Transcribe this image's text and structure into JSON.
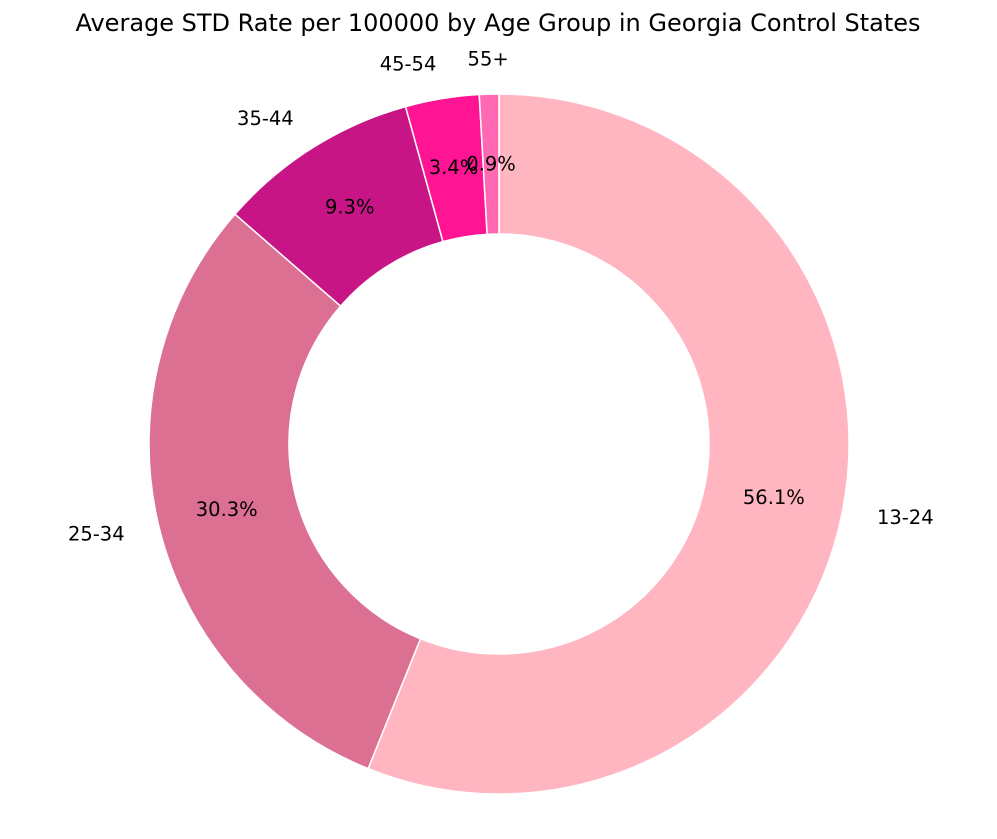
{
  "chart_data": {
    "type": "pie",
    "title": "Average STD Rate per 100000 by Age Group in Georgia Control States",
    "donut": true,
    "start": "top",
    "direction": "clockwise",
    "slices": [
      {
        "label": "13-24",
        "value": 56.1,
        "pct_label": "56.1%",
        "color": "#FFB6C1"
      },
      {
        "label": "25-34",
        "value": 30.3,
        "pct_label": "30.3%",
        "color": "#DB7093"
      },
      {
        "label": "35-44",
        "value": 9.3,
        "pct_label": "9.3%",
        "color": "#C71585"
      },
      {
        "label": "45-54",
        "value": 3.4,
        "pct_label": "3.4%",
        "color": "#FF1493"
      },
      {
        "label": "55+",
        "value": 0.9,
        "pct_label": "0.9%",
        "color": "#FF69B4"
      }
    ]
  }
}
